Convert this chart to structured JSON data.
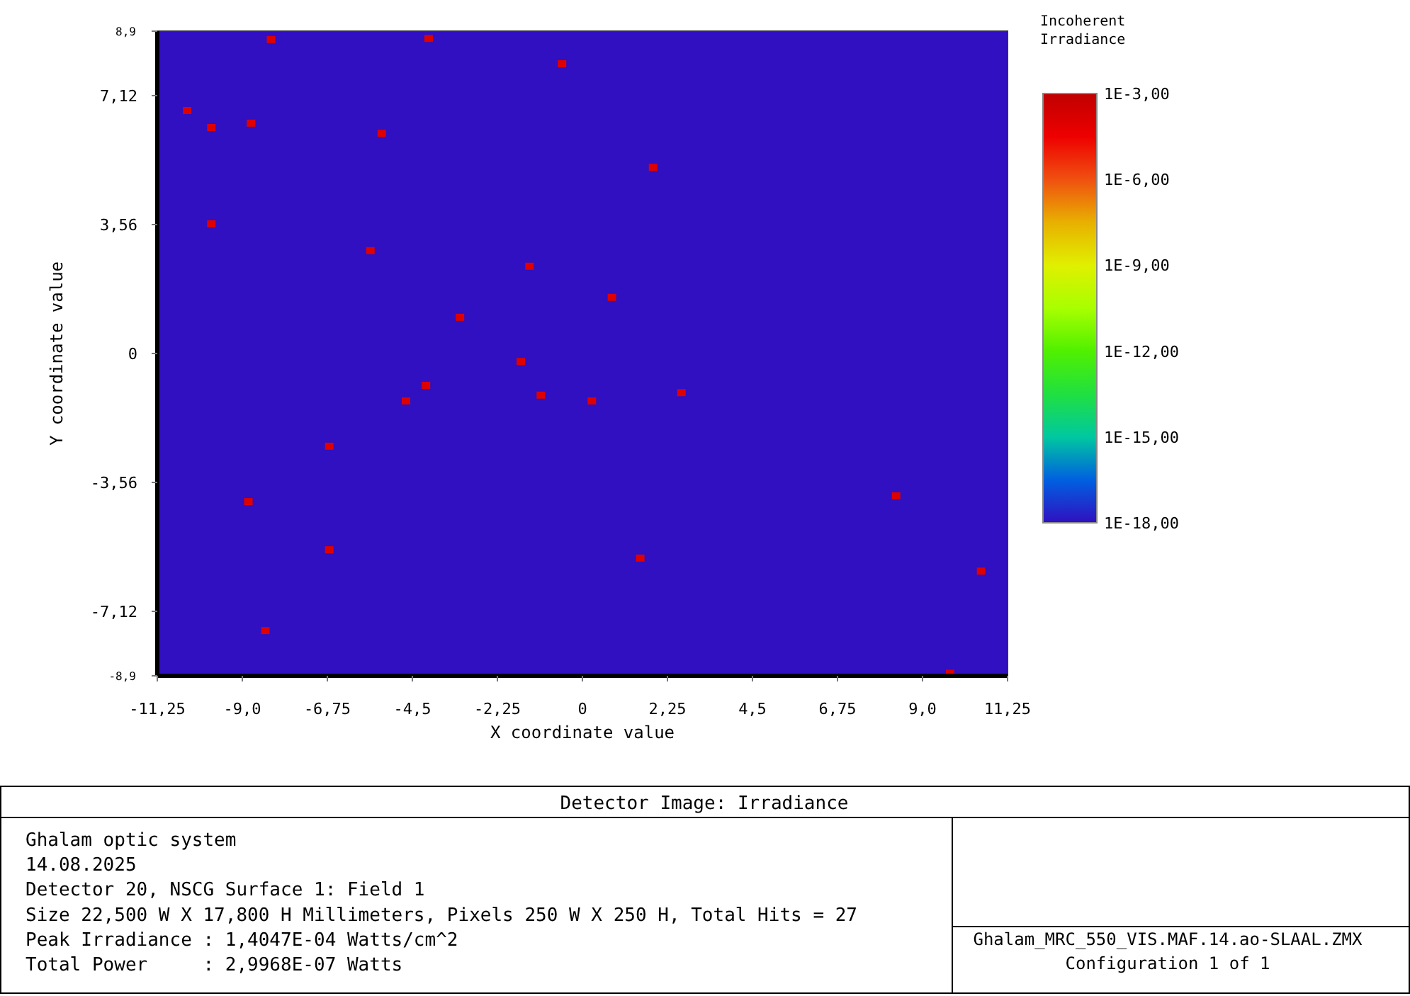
{
  "chart_data": {
    "type": "scatter",
    "title": "Detector Image: Irradiance",
    "xlabel": "X coordinate value",
    "ylabel": "Y coordinate value",
    "clabel": "Incoherent Irradiance",
    "marker": "square",
    "xlim": [
      -11.25,
      11.25
    ],
    "xticks": [
      {
        "value": -11.25,
        "label": "-11,25"
      },
      {
        "value": -9,
        "label": "-9,0"
      },
      {
        "value": -6.75,
        "label": "-6,75"
      },
      {
        "value": -4.5,
        "label": "-4,5"
      },
      {
        "value": -2.25,
        "label": "-2,25"
      },
      {
        "value": 0,
        "label": "0"
      },
      {
        "value": 2.25,
        "label": "2,25"
      },
      {
        "value": 4.5,
        "label": "4,5"
      },
      {
        "value": 6.75,
        "label": "6,75"
      },
      {
        "value": 9,
        "label": "9,0"
      },
      {
        "value": 11.25,
        "label": "11,25"
      }
    ],
    "ylim": [
      -8.9,
      8.9
    ],
    "yticks": [
      {
        "value": -8.9,
        "label": "-8,9"
      },
      {
        "value": -7.12,
        "label": "-7,12"
      },
      {
        "value": -3.56,
        "label": "-3,56"
      },
      {
        "value": 0,
        "label": "0"
      },
      {
        "value": 3.56,
        "label": "3,56"
      },
      {
        "value": 7.12,
        "label": "7,12"
      },
      {
        "value": 8.9,
        "label": "8,9"
      }
    ],
    "clim": [
      -18,
      -3
    ],
    "cticks": [
      {
        "value": -3,
        "label": "1E-3,00"
      },
      {
        "value": -6,
        "label": "1E-6,00"
      },
      {
        "value": -9,
        "label": "1E-9,00"
      },
      {
        "value": -12,
        "label": "1E-12,00"
      },
      {
        "value": -15,
        "label": "1E-15,00"
      },
      {
        "value": -18,
        "label": "1E-18,00"
      }
    ],
    "x": [
      -8.24,
      -4.07,
      -0.54,
      -10.46,
      -9.82,
      -8.77,
      -5.31,
      1.87,
      -9.82,
      -5.61,
      -1.4,
      0.78,
      -3.24,
      -1.63,
      -4.14,
      -4.67,
      -1.1,
      0.25,
      2.62,
      -6.7,
      -8.84,
      8.3,
      -6.7,
      1.53,
      -8.39,
      10.55,
      9.73
    ],
    "values": [
      8.67,
      8.7,
      8.0,
      6.71,
      6.24,
      6.36,
      6.08,
      5.14,
      3.58,
      2.84,
      2.41,
      1.55,
      1.0,
      -0.22,
      -0.88,
      -1.31,
      -1.15,
      -1.31,
      -1.08,
      -2.56,
      -4.09,
      -3.93,
      -5.42,
      -5.65,
      -7.65,
      -6.01,
      -8.83
    ],
    "cvalues": [
      -4,
      -4,
      -4,
      -4,
      -4,
      -4,
      -4,
      -4,
      -4,
      -4,
      -4,
      -4,
      -4,
      -4,
      -4,
      -4,
      -4,
      -4,
      -4,
      -4,
      -4,
      -4,
      -4,
      -4,
      -4,
      -4,
      -4
    ],
    "annotations": [
      "Ghalam optic system",
      "14.08.2025",
      "Detector 20, NSCG Surface 1: Field 1",
      "Size 22,500 W X 17,800 H Millimeters, Pixels 250 W X 250 H, Total Hits = 27",
      "Peak Irradiance : 1,4047E-04 Watts/cm^2",
      "Total Power     : 2,9968E-07 Watts",
      "Ghalam_MRC_550_VIS.MAF.14.ao-SLAAL.ZMX",
      "Configuration 1 of 1"
    ]
  }
}
